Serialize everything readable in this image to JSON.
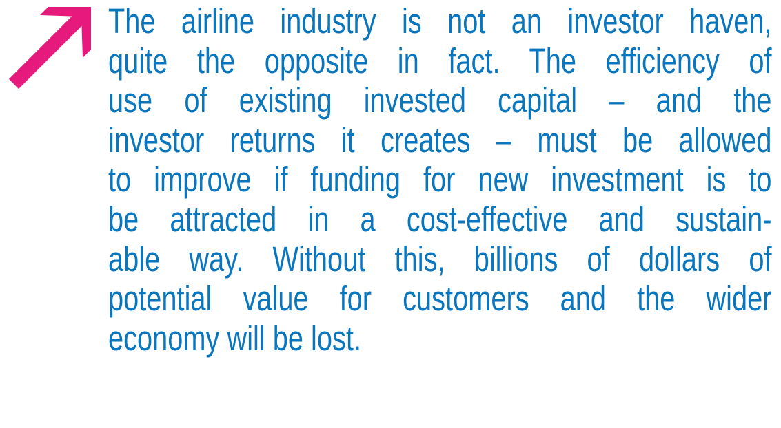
{
  "quote": {
    "lines": [
      "The airline industry is not an investor haven,",
      "quite the opposite in fact. The efficiency of",
      "use of existing invested capital – and the",
      "investor returns it creates – must be allowed",
      "to improve if funding for new investment is to",
      "be attracted in a cost-effective and sustain-",
      "able way. Without this, billions of dollars of",
      "potential value for customers and the wider",
      "economy will be lost."
    ]
  }
}
